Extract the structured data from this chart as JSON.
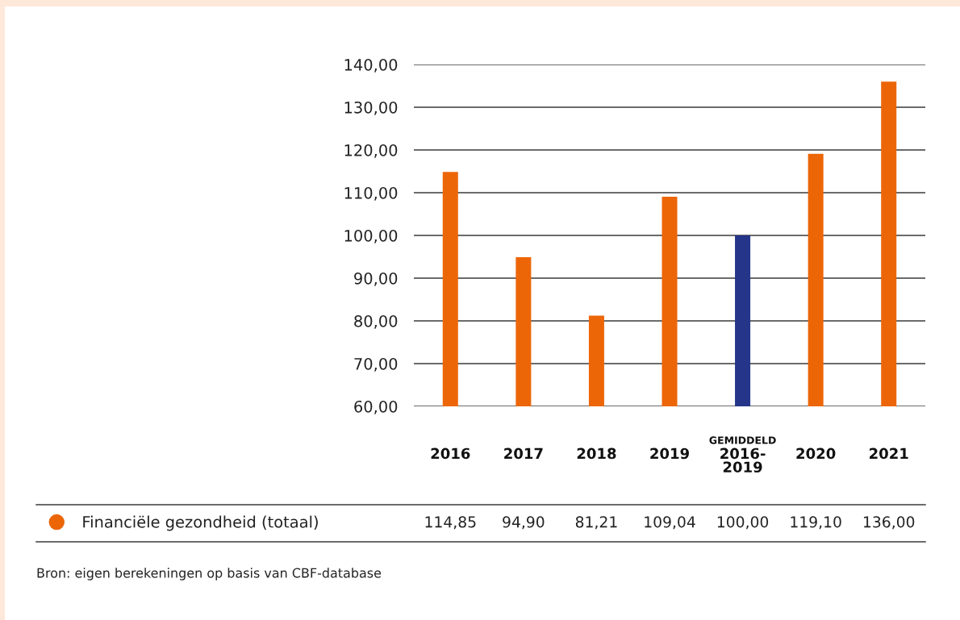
{
  "chart_data": {
    "type": "bar",
    "categories": [
      "2016",
      "2017",
      "2018",
      "2019",
      "GEMIDDELD\n2016-\n2019",
      "2020",
      "2021"
    ],
    "series": [
      {
        "name": "Financiële gezondheid (totaal)",
        "color": "#ec6608",
        "colors": [
          "#ec6608",
          "#ec6608",
          "#ec6608",
          "#ec6608",
          "#25368a",
          "#ec6608",
          "#ec6608"
        ],
        "values": [
          114.85,
          94.9,
          81.21,
          109.04,
          100.0,
          119.1,
          136.0
        ],
        "value_labels": [
          "114,85",
          "94,90",
          "81,21",
          "109,04",
          "100,00",
          "119,10",
          "136,00"
        ]
      }
    ],
    "ylim": [
      60,
      140
    ],
    "yticks": [
      {
        "value": 60,
        "label": "60,00"
      },
      {
        "value": 70,
        "label": "70,00"
      },
      {
        "value": 80,
        "label": "80,00"
      },
      {
        "value": 90,
        "label": "90,00"
      },
      {
        "value": 100,
        "label": "100,00"
      },
      {
        "value": 110,
        "label": "110,00"
      },
      {
        "value": 120,
        "label": "120,00"
      },
      {
        "value": 130,
        "label": "130,00"
      },
      {
        "value": 140,
        "label": "140,00"
      }
    ],
    "grid": "y",
    "legend": "bottom",
    "annotations": [
      "Bron: eigen berekeningen op basis van CBF-database"
    ]
  }
}
